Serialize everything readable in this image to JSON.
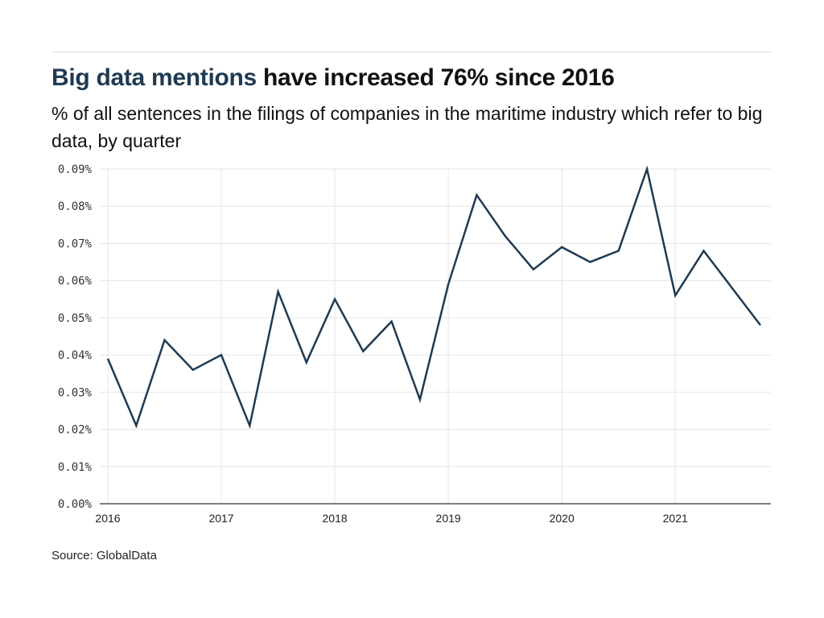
{
  "header": {
    "title_highlight": "Big data mentions",
    "title_rest": " have increased 76% since 2016",
    "subtitle": "% of all sentences in the filings of companies in the maritime industry which refer to big data, by quarter"
  },
  "source": "Source: GlobalData",
  "colors": {
    "line": "#1f3a52",
    "highlight": "#1f3a52",
    "grid": "#e6e6e6",
    "axis": "#555555"
  },
  "chart_data": {
    "type": "line",
    "title": "Big data mentions have increased 76% since 2016",
    "subtitle": "% of all sentences in the filings of companies in the maritime industry which refer to big data, by quarter",
    "xlabel": "",
    "ylabel": "",
    "x": [
      "2016 Q1",
      "2016 Q2",
      "2016 Q3",
      "2016 Q4",
      "2017 Q1",
      "2017 Q2",
      "2017 Q3",
      "2017 Q4",
      "2018 Q1",
      "2018 Q2",
      "2018 Q3",
      "2018 Q4",
      "2019 Q1",
      "2019 Q2",
      "2019 Q3",
      "2019 Q4",
      "2020 Q1",
      "2020 Q2",
      "2020 Q3",
      "2020 Q4",
      "2021 Q1",
      "2021 Q2",
      "2021 Q3",
      "2021 Q4"
    ],
    "series": [
      {
        "name": "Big data mentions (%)",
        "values": [
          0.039,
          0.021,
          0.044,
          0.036,
          0.04,
          0.021,
          0.057,
          0.038,
          0.055,
          0.041,
          0.049,
          0.028,
          0.059,
          0.083,
          0.072,
          0.063,
          0.069,
          0.065,
          0.068,
          0.09,
          0.056,
          0.068,
          0.058,
          0.048
        ]
      }
    ],
    "ylim": [
      0,
      0.09
    ],
    "yticks": [
      0,
      0.01,
      0.02,
      0.03,
      0.04,
      0.05,
      0.06,
      0.07,
      0.08,
      0.09
    ],
    "ytick_labels": [
      "0.00%",
      "0.01%",
      "0.02%",
      "0.03%",
      "0.04%",
      "0.05%",
      "0.06%",
      "0.07%",
      "0.08%",
      "0.09%"
    ],
    "xtick_labels": [
      "2016",
      "2017",
      "2018",
      "2019",
      "2020",
      "2021"
    ],
    "xtick_positions": [
      0,
      4,
      8,
      12,
      16,
      20
    ],
    "grid": true,
    "legend": "none",
    "source": "Source: GlobalData"
  }
}
